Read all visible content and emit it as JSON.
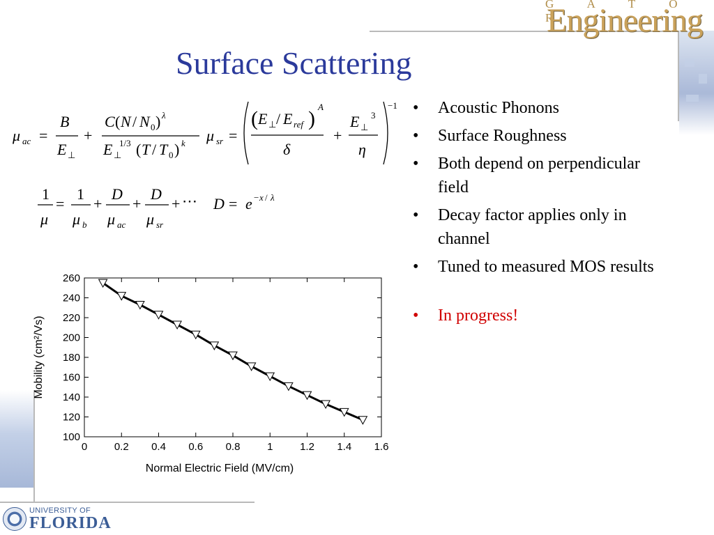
{
  "slide": {
    "title": "Surface Scattering",
    "bullets": [
      "Acoustic Phonons",
      "Surface Roughness",
      "Both depend on perpendicular field",
      "Decay factor applies only in channel",
      "Tuned to measured MOS results"
    ],
    "highlight_bullet": "In progress!",
    "bullet_glyph": "•",
    "highlight_color": "#d00000",
    "title_color": "#2b3a9b"
  },
  "logos": {
    "top_right_small": "G A T O R",
    "top_right_word": "Engineering",
    "bottom_left_line1": "UNIVERSITY OF",
    "bottom_left_line2": "FLORIDA"
  },
  "equations": {
    "mu_ac": "μac = B/E⊥ + C(N/N0)^λ / (E⊥^(1/3) (T/T0)^k)",
    "mu_sr": "μsr = ( (E⊥/Eref)^A / δ + E⊥^3 / η )^−1",
    "matthiessen": "1/μ = 1/μb + D/μac + D/μsr + ⋯",
    "decay": "D = e^(−x/λ)"
  },
  "chart_data": {
    "type": "line",
    "title": "",
    "xlabel": "Normal Electric Field (MV/cm)",
    "ylabel": "Mobility (cm²/Vs)",
    "xlim": [
      0,
      1.6
    ],
    "ylim": [
      100,
      260
    ],
    "xticks": [
      "0",
      "0.2",
      "0.4",
      "0.6",
      "0.8",
      "1",
      "1.2",
      "1.4",
      "1.6"
    ],
    "yticks": [
      "100",
      "120",
      "140",
      "160",
      "180",
      "200",
      "220",
      "240",
      "260"
    ],
    "grid": false,
    "legend": "none",
    "series": [
      {
        "marker": "triangle-down",
        "x": [
          0.1,
          0.2,
          0.3,
          0.4,
          0.5,
          0.6,
          0.7,
          0.8,
          0.9,
          1.0,
          1.1,
          1.2,
          1.3,
          1.4,
          1.5
        ],
        "y": [
          255,
          242,
          233,
          223,
          213,
          203,
          192,
          182,
          171,
          161,
          151,
          142,
          133,
          125,
          117
        ]
      }
    ]
  }
}
